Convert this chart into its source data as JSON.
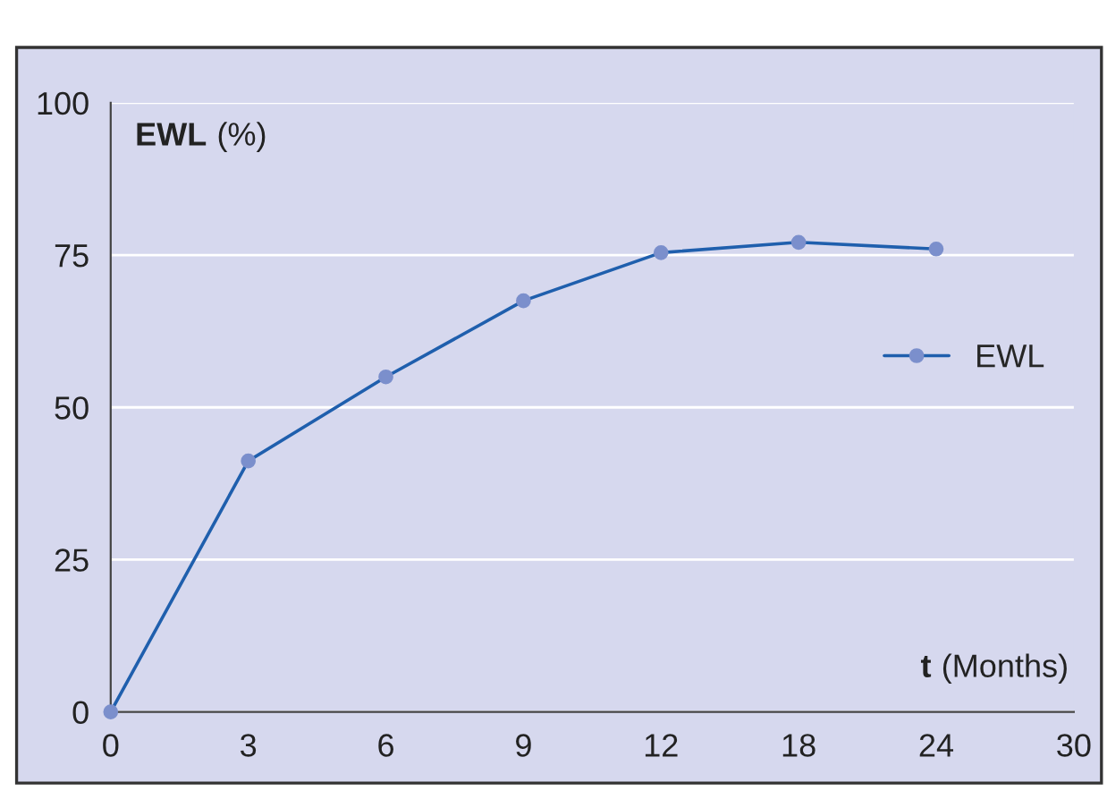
{
  "chart_data": {
    "type": "line",
    "ylabel": "EWL (%)",
    "xlabel": "t (Months)",
    "categories": [
      "0",
      "3",
      "6",
      "9",
      "12",
      "18",
      "24",
      "30"
    ],
    "series": [
      {
        "name": "EWL",
        "color": "#1f5fad",
        "values": [
          0,
          41.2,
          55,
          67.5,
          75.4,
          77.1,
          76,
          null
        ]
      }
    ],
    "ylim": [
      0,
      100
    ],
    "yticks": [
      0,
      25,
      50,
      75,
      100
    ],
    "grid": "y",
    "legend": "right",
    "marker": "circle",
    "line_style": "solid"
  }
}
